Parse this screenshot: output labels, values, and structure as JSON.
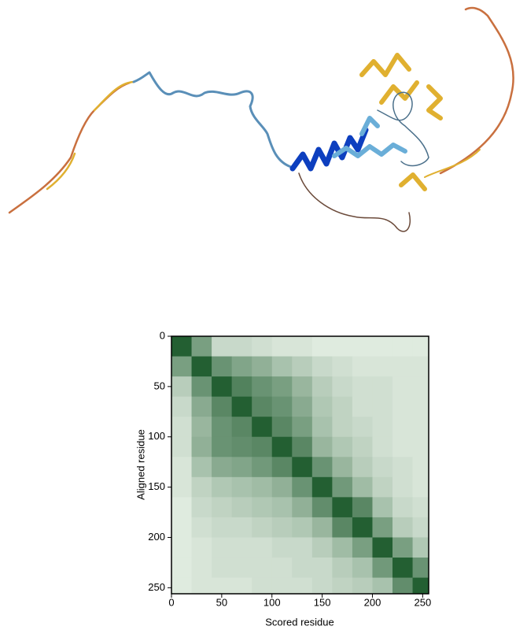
{
  "chart_data": {
    "type": "heatmap",
    "xlabel": "Scored residue",
    "ylabel": "Aligned residue",
    "xlim": [
      0,
      256
    ],
    "ylim": [
      0,
      256
    ],
    "xticks": [
      0,
      50,
      100,
      150,
      200,
      250
    ],
    "yticks": [
      0,
      50,
      100,
      150,
      200,
      250
    ],
    "bins": [
      0,
      20,
      40,
      60,
      80,
      100,
      120,
      140,
      160,
      180,
      200,
      220,
      240,
      256
    ],
    "color_low": "#0b4d1c",
    "color_high": "#f7fcf5",
    "value_range": [
      0,
      30
    ],
    "values": [
      [
        3,
        14,
        24,
        24,
        25,
        26,
        26,
        27,
        27,
        27,
        27,
        27,
        27
      ],
      [
        14,
        3,
        12,
        15,
        17,
        20,
        22,
        24,
        25,
        26,
        26,
        26,
        26
      ],
      [
        22,
        12,
        3,
        9,
        12,
        14,
        18,
        22,
        24,
        25,
        25,
        26,
        26
      ],
      [
        24,
        16,
        10,
        3,
        10,
        12,
        16,
        21,
        23,
        25,
        25,
        26,
        26
      ],
      [
        25,
        18,
        12,
        10,
        3,
        10,
        14,
        20,
        23,
        24,
        25,
        26,
        26
      ],
      [
        25,
        17,
        12,
        11,
        10,
        3,
        10,
        18,
        21,
        23,
        25,
        26,
        26
      ],
      [
        26,
        20,
        16,
        15,
        13,
        10,
        3,
        12,
        18,
        22,
        24,
        25,
        26
      ],
      [
        26,
        23,
        21,
        20,
        19,
        17,
        12,
        3,
        13,
        19,
        23,
        25,
        26
      ],
      [
        27,
        24,
        23,
        22,
        21,
        20,
        17,
        11,
        3,
        10,
        20,
        24,
        25
      ],
      [
        27,
        25,
        24,
        24,
        23,
        22,
        21,
        18,
        10,
        3,
        14,
        22,
        24
      ],
      [
        27,
        26,
        25,
        25,
        25,
        24,
        24,
        22,
        19,
        14,
        3,
        14,
        21
      ],
      [
        27,
        26,
        25,
        25,
        25,
        25,
        24,
        24,
        22,
        20,
        13,
        3,
        12
      ],
      [
        27,
        26,
        26,
        26,
        25,
        25,
        25,
        24,
        23,
        22,
        20,
        11,
        3
      ]
    ]
  }
}
